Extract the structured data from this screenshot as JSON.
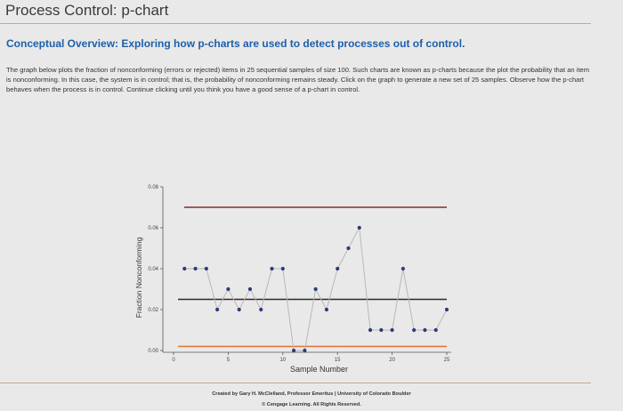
{
  "page": {
    "title": "Process Control: p-chart",
    "subtitle": "Conceptual Overview: Exploring how p-charts are used to detect processes out of control.",
    "description": "The graph below plots the fraction of nonconforming (errors or rejected) items in 25 sequential samples of size 100. Such charts are known as p-charts because the plot the probability that an item is nonconforming. In this case, the system is in control; that is, the probability of nonconforming remains steady. Click on the graph to generate a new set of 25 samples. Observe how the p-chart behaves when the process is in control. Continue clicking until you think you have a good sense of a p-chart in control.",
    "credit_line1": "Created by Gary H. McClelland, Professor Emeritus | University of Colorado Boulder",
    "credit_line2": "© Cengage Learning. All Rights Reserved."
  },
  "colors": {
    "ucl": "#7a2f2f",
    "center": "#2b2b2b",
    "lcl": "#e07a3a",
    "points": "#2c3b7a",
    "series_line": "#b8b8b8",
    "axis": "#555555"
  },
  "chart_data": {
    "type": "line",
    "xlabel": "Sample Number",
    "ylabel": "Fraction Nonconforming",
    "xlim": [
      0,
      25
    ],
    "ylim": [
      0,
      0.08
    ],
    "x_ticks": [
      "0",
      "5",
      "10",
      "15",
      "20",
      "25"
    ],
    "y_ticks": [
      "0.00",
      "0.02",
      "0.04",
      "0.06",
      "0.08"
    ],
    "control_limits": {
      "ucl": 0.07,
      "center": 0.025,
      "lcl": 0.002
    },
    "x": [
      1,
      2,
      3,
      4,
      5,
      6,
      7,
      8,
      9,
      10,
      11,
      12,
      13,
      14,
      15,
      16,
      17,
      18,
      19,
      20,
      21,
      22,
      23,
      24,
      25
    ],
    "values": [
      0.04,
      0.04,
      0.04,
      0.02,
      0.03,
      0.02,
      0.03,
      0.02,
      0.04,
      0.04,
      0.0,
      0.0,
      0.03,
      0.02,
      0.04,
      0.05,
      0.06,
      0.01,
      0.01,
      0.01,
      0.04,
      0.01,
      0.01,
      0.01,
      0.02
    ]
  }
}
